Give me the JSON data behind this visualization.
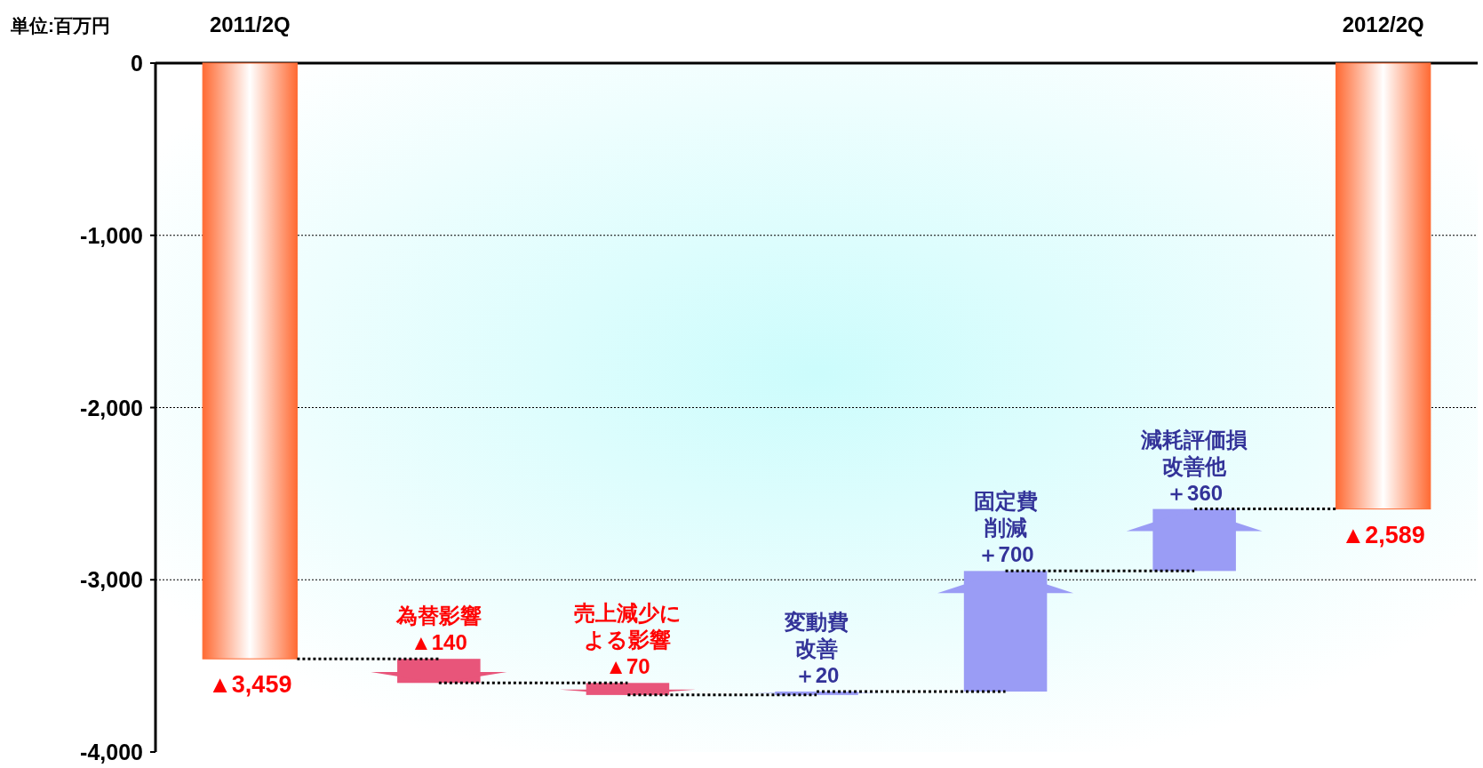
{
  "chart_data": {
    "type": "bar",
    "ylabel": "単位:百万円",
    "categories": [
      "2011/2Q",
      "為替影響",
      "売上減少による影響",
      "変動費改善",
      "固定費削減",
      "減耗評価損改善他",
      "2012/2Q"
    ],
    "values": [
      -3459,
      -140,
      -70,
      20,
      700,
      360,
      -2589
    ],
    "base": [
      0,
      -3459,
      -3599,
      -3669,
      -3649,
      -2949,
      0
    ],
    "colors": [
      "#ff6a33",
      "#e8557a",
      "#e8557a",
      "#9a9cf5",
      "#9a9cf5",
      "#9a9cf5",
      "#ff6a33"
    ],
    "value_labels": [
      "▲3,459",
      "▲140",
      "▲70",
      "＋20",
      "＋700",
      "＋360",
      "▲2,589"
    ],
    "ylim": [
      -4000,
      0
    ],
    "yticks": [
      {
        "value": 0,
        "label": "0"
      },
      {
        "value": -1000,
        "label": "-1,000"
      },
      {
        "value": -2000,
        "label": "-2,000"
      },
      {
        "value": -3000,
        "label": "-3,000"
      },
      {
        "value": -4000,
        "label": "-4,000"
      }
    ],
    "grid": "y"
  }
}
